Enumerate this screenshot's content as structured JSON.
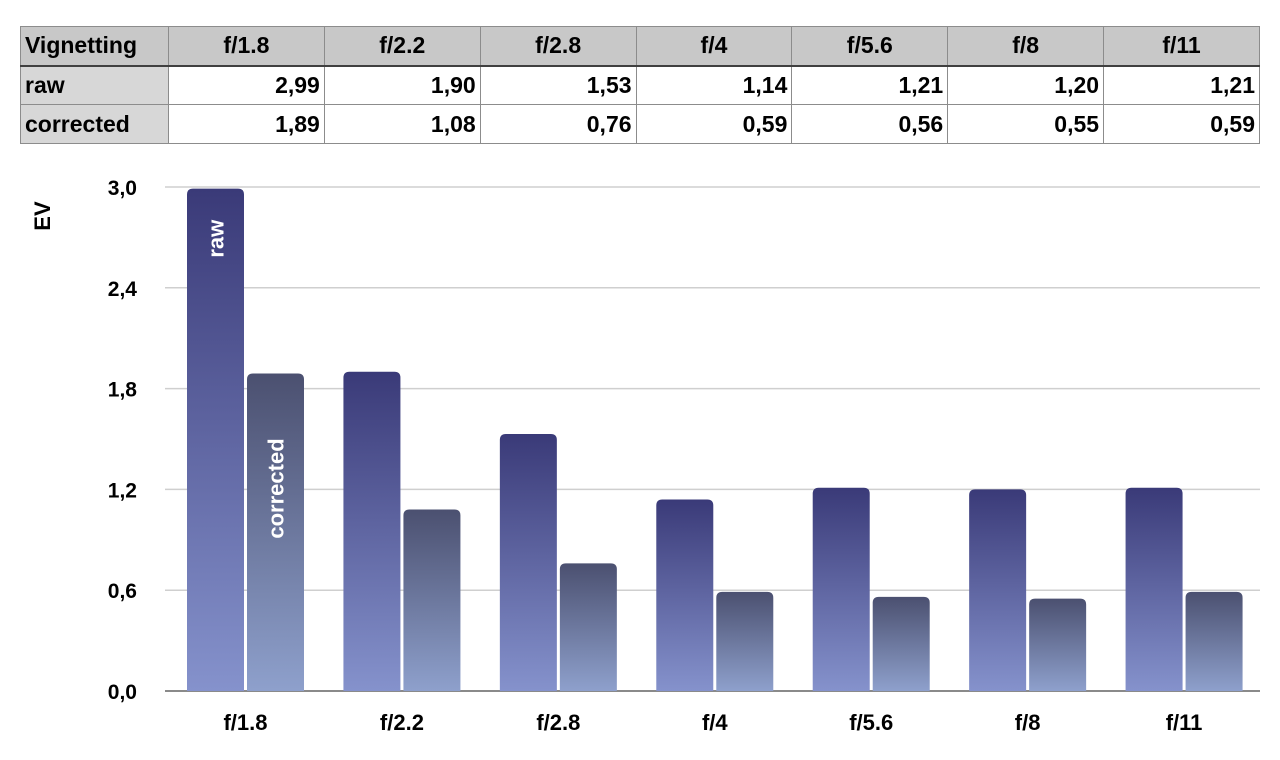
{
  "table": {
    "corner": "Vignetting",
    "columns": [
      "f/1.8",
      "f/2.2",
      "f/2.8",
      "f/4",
      "f/5.6",
      "f/8",
      "f/11"
    ],
    "rows": [
      {
        "label": "raw",
        "cells": [
          "2,99",
          "1,90",
          "1,53",
          "1,14",
          "1,21",
          "1,20",
          "1,21"
        ]
      },
      {
        "label": "corrected",
        "cells": [
          "1,89",
          "1,08",
          "0,76",
          "0,59",
          "0,56",
          "0,55",
          "0,59"
        ]
      }
    ]
  },
  "chart_data": {
    "type": "bar",
    "title": "",
    "xlabel": "",
    "ylabel": "EV",
    "ylim": [
      0,
      3.0
    ],
    "yticks": [
      0,
      0.6,
      1.2,
      1.8,
      2.4,
      3.0
    ],
    "ytick_labels": [
      "0,0",
      "0,6",
      "1,2",
      "1,8",
      "2,4",
      "3,0"
    ],
    "grid": true,
    "categories": [
      "f/1.8",
      "f/2.2",
      "f/2.8",
      "f/4",
      "f/5.6",
      "f/8",
      "f/11"
    ],
    "series": [
      {
        "name": "raw",
        "values": [
          2.99,
          1.9,
          1.53,
          1.14,
          1.21,
          1.2,
          1.21
        ],
        "color_top": "#3a3a78",
        "color_bottom": "#8592cc"
      },
      {
        "name": "corrected",
        "values": [
          1.89,
          1.08,
          0.76,
          0.59,
          0.56,
          0.55,
          0.59
        ],
        "color_top": "#4b5070",
        "color_bottom": "#8ea0cc"
      }
    ],
    "legend": "inside first bars (rotated labels)"
  }
}
